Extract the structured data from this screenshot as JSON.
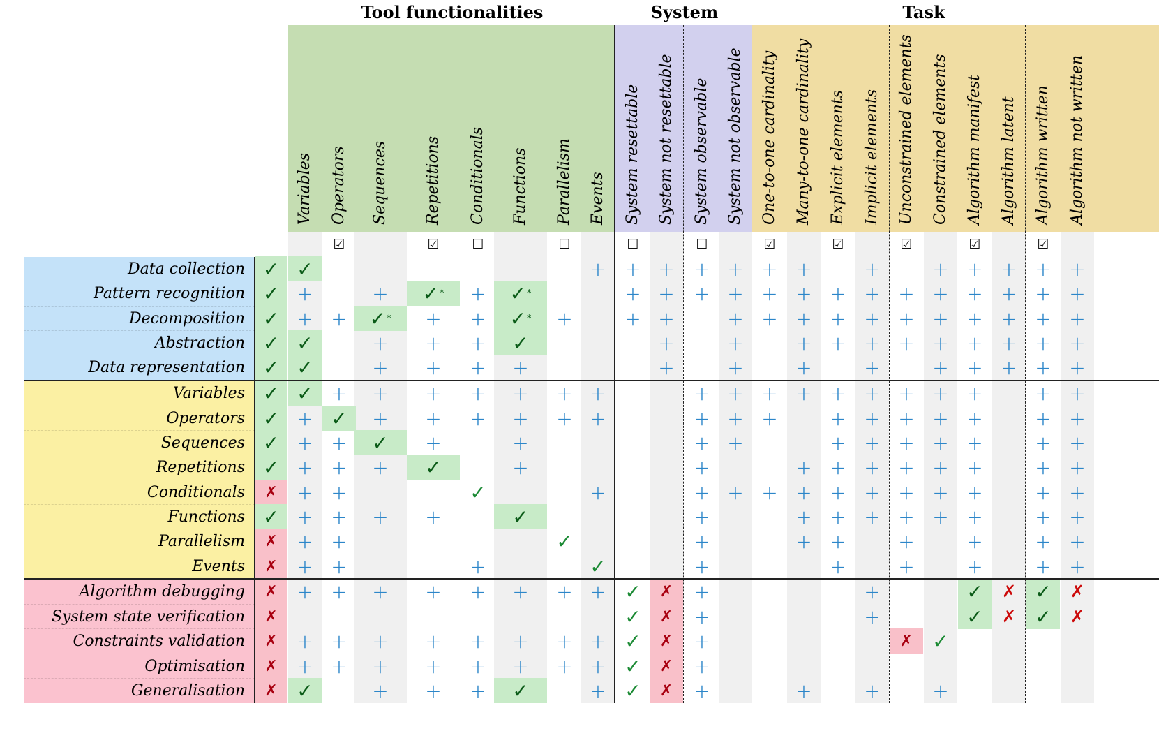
{
  "header_groups": [
    {
      "key": "tool",
      "label": "Tool functionalities",
      "color": "#c5ddb2"
    },
    {
      "key": "system",
      "label": "System",
      "color": "#d2d0ee"
    },
    {
      "key": "task",
      "label": "Task",
      "color": "#f0dda3"
    }
  ],
  "columns": [
    {
      "label": "Variables",
      "group": "tool",
      "box": "checked"
    },
    {
      "label": "Operators",
      "group": "tool",
      "box": "checked"
    },
    {
      "label": "Sequences",
      "group": "tool",
      "box": "checked"
    },
    {
      "label": "Repetitions",
      "group": "tool",
      "box": "checked"
    },
    {
      "label": "Conditionals",
      "group": "tool",
      "box": "unchecked"
    },
    {
      "label": "Functions",
      "group": "tool",
      "box": "checked"
    },
    {
      "label": "Parallelism",
      "group": "tool",
      "box": "unchecked"
    },
    {
      "label": "Events",
      "group": "tool",
      "box": "unchecked"
    },
    {
      "label": "System resettable",
      "group": "system",
      "box": "unchecked"
    },
    {
      "label": "System not resettable",
      "group": "system",
      "box": "checked"
    },
    {
      "label": "System observable",
      "group": "system",
      "box": "unchecked"
    },
    {
      "label": "System not observable",
      "group": "system",
      "box": "checked"
    },
    {
      "label": "One-to-one cardinality",
      "group": "task",
      "box": "checked"
    },
    {
      "label": "Many-to-one cardinality",
      "group": "task",
      "box": "unchecked"
    },
    {
      "label": "Explicit elements",
      "group": "task",
      "box": "checked"
    },
    {
      "label": "Implicit elements",
      "group": "task",
      "box": "unchecked"
    },
    {
      "label": "Unconstrained elements",
      "group": "task",
      "box": "checked"
    },
    {
      "label": "Constrained elements",
      "group": "task",
      "box": "unchecked"
    },
    {
      "label": "Algorithm manifest",
      "group": "task",
      "box": "checked"
    },
    {
      "label": "Algorithm latent",
      "group": "task",
      "box": "unchecked"
    },
    {
      "label": "Algorithm written",
      "group": "task",
      "box": "checked"
    },
    {
      "label": "Algorithm not written",
      "group": "task",
      "box": "unchecked"
    }
  ],
  "row_groups": [
    {
      "key": "g1",
      "color": "#c4e2f9"
    },
    {
      "key": "g2",
      "color": "#fbf0a3"
    },
    {
      "key": "g3",
      "color": "#fbc2cf"
    }
  ],
  "legend": {
    "checked_glyph": "☑",
    "unchecked_glyph": "☐",
    "check_glyph": "✓",
    "cross_glyph": "✗",
    "plus_glyph": "+",
    "star_glyph": "*"
  },
  "rows": [
    {
      "label": "Data collection",
      "group": "g1",
      "status": "check",
      "cells": [
        "V",
        "",
        "",
        "",
        "",
        "",
        "",
        "+",
        "+",
        "+",
        "+",
        "+",
        "+",
        "+",
        "",
        "+",
        "",
        "+",
        "+",
        "+",
        "+",
        "+"
      ]
    },
    {
      "label": "Pattern recognition",
      "group": "g1",
      "status": "check",
      "cells": [
        "+",
        "",
        "+",
        "V*",
        "+",
        "V*",
        "",
        "",
        "+",
        "+",
        "+",
        "+",
        "+",
        "+",
        "+",
        "+",
        "+",
        "+",
        "+",
        "+",
        "+",
        "+"
      ]
    },
    {
      "label": "Decomposition",
      "group": "g1",
      "status": "check",
      "cells": [
        "+",
        "+",
        "V*",
        "+",
        "+",
        "V*",
        "+",
        "",
        "+",
        "+",
        "",
        "+",
        "+",
        "+",
        "+",
        "+",
        "+",
        "+",
        "+",
        "+",
        "+",
        "+"
      ]
    },
    {
      "label": "Abstraction",
      "group": "g1",
      "status": "check",
      "cells": [
        "V",
        "",
        "+",
        "+",
        "+",
        "V",
        "",
        "",
        "",
        "+",
        "",
        "+",
        "",
        "+",
        "+",
        "+",
        "+",
        "+",
        "+",
        "+",
        "+",
        "+"
      ]
    },
    {
      "label": "Data representation",
      "group": "g1",
      "status": "check",
      "cells": [
        "V",
        "",
        "+",
        "+",
        "+",
        "+",
        "",
        "",
        "",
        "+",
        "",
        "+",
        "",
        "+",
        "",
        "+",
        "",
        "+",
        "+",
        "+",
        "+",
        "+"
      ]
    },
    {
      "label": "Variables",
      "group": "g2",
      "status": "check",
      "cells": [
        "V",
        "+",
        "+",
        "+",
        "+",
        "+",
        "+",
        "+",
        "",
        "",
        "+",
        "+",
        "+",
        "+",
        "+",
        "+",
        "+",
        "+",
        "+",
        "",
        "+",
        "+"
      ]
    },
    {
      "label": "Operators",
      "group": "g2",
      "status": "check",
      "cells": [
        "+",
        "V",
        "+",
        "+",
        "+",
        "+",
        "+",
        "+",
        "",
        "",
        "+",
        "+",
        "+",
        "",
        "+",
        "+",
        "+",
        "+",
        "+",
        "",
        "+",
        "+"
      ]
    },
    {
      "label": "Sequences",
      "group": "g2",
      "status": "check",
      "cells": [
        "+",
        "+",
        "V",
        "+",
        "",
        "+",
        "",
        "",
        "",
        "",
        "+",
        "+",
        "",
        "",
        "+",
        "+",
        "+",
        "+",
        "+",
        "",
        "+",
        "+"
      ]
    },
    {
      "label": "Repetitions",
      "group": "g2",
      "status": "check",
      "cells": [
        "+",
        "+",
        "+",
        "V",
        "",
        "+",
        "",
        "",
        "",
        "",
        "+",
        "",
        "",
        "+",
        "+",
        "+",
        "+",
        "+",
        "+",
        "",
        "+",
        "+"
      ]
    },
    {
      "label": "Conditionals",
      "group": "g2",
      "status": "cross",
      "cells": [
        "+",
        "+",
        "",
        "",
        "c",
        "",
        "",
        "+",
        "",
        "",
        "+",
        "+",
        "+",
        "+",
        "+",
        "+",
        "+",
        "+",
        "+",
        "",
        "+",
        "+"
      ]
    },
    {
      "label": "Functions",
      "group": "g2",
      "status": "check",
      "cells": [
        "+",
        "+",
        "+",
        "+",
        "",
        "V",
        "",
        "",
        "",
        "",
        "+",
        "",
        "",
        "+",
        "+",
        "+",
        "+",
        "+",
        "+",
        "",
        "+",
        "+"
      ]
    },
    {
      "label": "Parallelism",
      "group": "g2",
      "status": "cross",
      "cells": [
        "+",
        "+",
        "",
        "",
        "",
        "",
        "c",
        "",
        "",
        "",
        "+",
        "",
        "",
        "+",
        "+",
        "",
        "+",
        "",
        "+",
        "",
        "+",
        "+"
      ]
    },
    {
      "label": "Events",
      "group": "g2",
      "status": "cross",
      "cells": [
        "+",
        "+",
        "",
        "",
        "+",
        "",
        "",
        "c",
        "",
        "",
        "+",
        "",
        "",
        "",
        "+",
        "",
        "+",
        "",
        "+",
        "",
        "+",
        "+"
      ]
    },
    {
      "label": "Algorithm debugging",
      "group": "g3",
      "status": "cross",
      "cells": [
        "+",
        "+",
        "+",
        "+",
        "+",
        "+",
        "+",
        "+",
        "c",
        "X",
        "+",
        "",
        "",
        "",
        "",
        "+",
        "",
        "",
        "V",
        "x",
        "V",
        "x"
      ]
    },
    {
      "label": "System state verification",
      "group": "g3",
      "status": "cross",
      "cells": [
        "",
        "",
        "",
        "",
        "",
        "",
        "",
        "",
        "c",
        "X",
        "+",
        "",
        "",
        "",
        "",
        "+",
        "",
        "",
        "V",
        "x",
        "V",
        "x"
      ]
    },
    {
      "label": "Constraints validation",
      "group": "g3",
      "status": "cross",
      "cells": [
        "+",
        "+",
        "+",
        "+",
        "+",
        "+",
        "+",
        "+",
        "c",
        "X",
        "+",
        "",
        "",
        "",
        "",
        "",
        "X",
        "c",
        "",
        "",
        "",
        ""
      ]
    },
    {
      "label": "Optimisation",
      "group": "g3",
      "status": "cross",
      "cells": [
        "+",
        "+",
        "+",
        "+",
        "+",
        "+",
        "+",
        "+",
        "c",
        "X",
        "+",
        "",
        "",
        "",
        "",
        "",
        "",
        "",
        "",
        "",
        "",
        ""
      ]
    },
    {
      "label": "Generalisation",
      "group": "g3",
      "status": "cross",
      "cells": [
        "V",
        "",
        "+",
        "+",
        "+",
        "V",
        "",
        "+",
        "c",
        "X",
        "+",
        "",
        "",
        "+",
        "",
        "+",
        "",
        "+",
        "",
        "",
        "",
        ""
      ]
    }
  ]
}
